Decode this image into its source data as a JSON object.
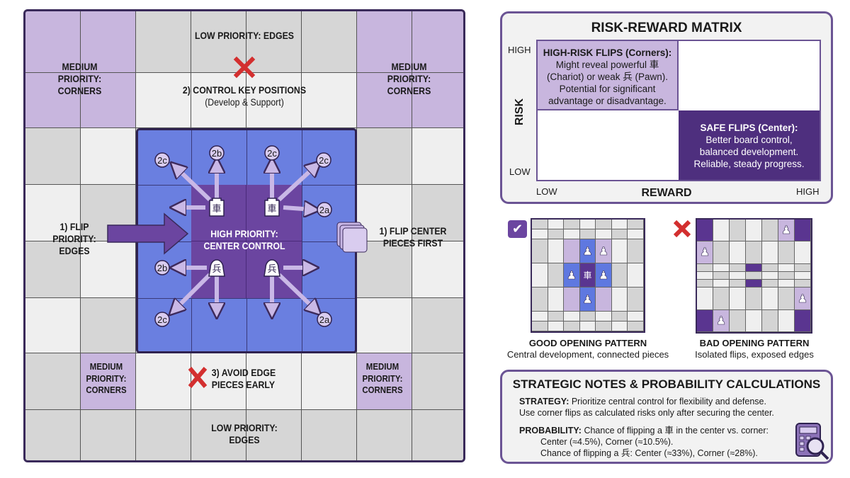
{
  "board": {
    "top_label": "LOW PRIORITY: EDGES",
    "corner_label": [
      "MEDIUM",
      "PRIORITY:",
      "CORNERS"
    ],
    "control_title": "2) CONTROL KEY POSITIONS",
    "control_sub": "(Develop & Support)",
    "left_label": [
      "1) FLIP",
      "PRIORITY:",
      "EDGES"
    ],
    "right_label": [
      "1) FLIP CENTER",
      "PIECES FIRST"
    ],
    "center_label": [
      "HIGH PRIORITY:",
      "CENTER CONTROL"
    ],
    "avoid_label": [
      "3) AVOID EDGE",
      "PIECES EARLY"
    ],
    "bottom_label": [
      "LOW PRIORITY:",
      "EDGES"
    ],
    "move_markers": [
      "2c",
      "2b",
      "2c",
      "2c",
      "2a",
      "2b",
      "2c",
      "2a"
    ],
    "pieces": {
      "chariot": "車",
      "pawn": "兵"
    },
    "colors": {
      "corner": "#c8b6de",
      "center_outer": "#6a7fe0",
      "center_inner": "#6b45a0",
      "gray": "#d6d6d6",
      "light": "#efefef",
      "x_mark": "#d32f2f"
    }
  },
  "matrix": {
    "title": "RISK-REWARD MATRIX",
    "y_axis": "RISK",
    "x_axis": "REWARD",
    "high": "HIGH",
    "low": "LOW",
    "high_risk_title": "HIGH-RISK FLIPS (Corners):",
    "high_risk_text": [
      "Might reveal powerful 車",
      "(Chariot) or weak 兵 (Pawn).",
      "Potential for significant",
      "advantage or disadvantage."
    ],
    "safe_title": "SAFE FLIPS (Center):",
    "safe_text": [
      "Better board control,",
      "balanced development.",
      "Reliable, steady progress."
    ]
  },
  "patterns": {
    "good_title": "GOOD OPENING PATTERN",
    "good_sub": "Central development, connected pieces",
    "bad_title": "BAD OPENING PATTERN",
    "bad_sub": "Isolated flips, exposed edges",
    "good_icon": "checkmark-icon",
    "bad_icon": "x-icon"
  },
  "notes": {
    "title": "STRATEGIC NOTES & PROBABILITY CALCULATIONS",
    "strategy_label": "STRATEGY:",
    "strategy_text": " Prioritize central control for flexibility and defense.",
    "strategy_text2": "Use corner flips as calculated risks only after securing the center.",
    "prob_label": "PROBABILITY:",
    "prob_text": " Chance of flipping a 車 in the center vs. corner:",
    "prob_line2": "Center (≈4.5%), Corner (≈10.5%).",
    "prob_line3": "Chance of flipping a 兵: Center (≈33%), Corner (≈28%).",
    "icon": "calculator-magnifier-icon"
  }
}
